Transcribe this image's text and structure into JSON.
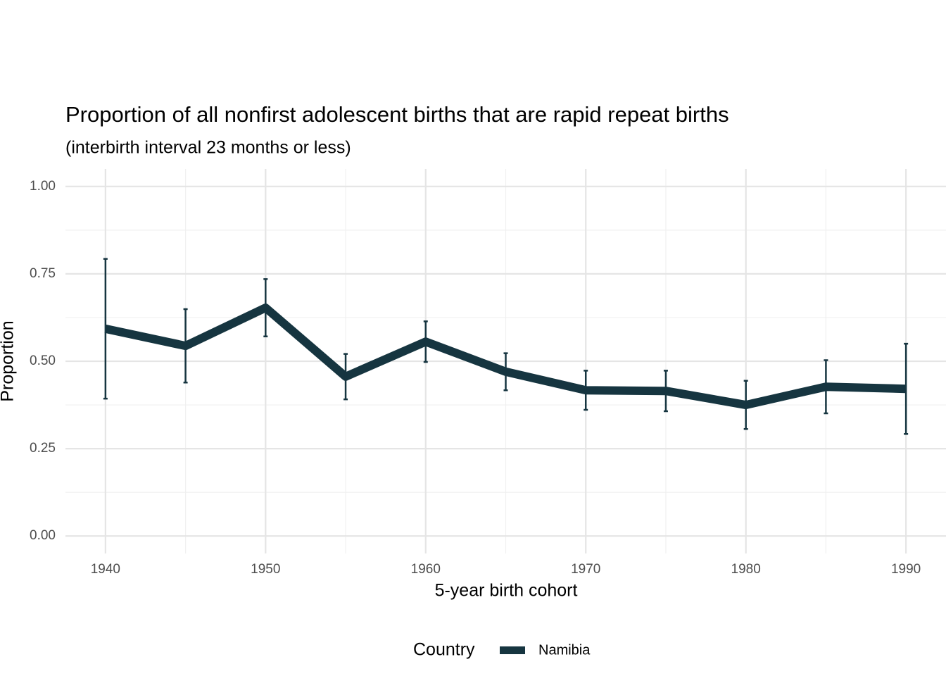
{
  "chart_data": {
    "type": "line",
    "title": "Proportion of all nonfirst adolescent births that are rapid repeat births",
    "subtitle": "(interbirth interval 23 months or less)",
    "x_label": "5-year birth cohort",
    "y_label": "Proportion",
    "x": [
      1940,
      1945,
      1950,
      1955,
      1960,
      1965,
      1970,
      1975,
      1980,
      1985,
      1990
    ],
    "series": [
      {
        "name": "Namibia",
        "color": "#163540",
        "values": [
          0.593,
          0.544,
          0.653,
          0.456,
          0.556,
          0.47,
          0.417,
          0.415,
          0.375,
          0.427,
          0.421
        ],
        "errors": [
          0.2,
          0.105,
          0.082,
          0.065,
          0.058,
          0.053,
          0.056,
          0.058,
          0.069,
          0.076,
          0.129
        ]
      }
    ],
    "xlim": [
      1937.5,
      1992.5
    ],
    "xticks": [
      1940,
      1950,
      1960,
      1970,
      1980,
      1990
    ],
    "x_minor_ticks": [
      1945,
      1955,
      1965,
      1975,
      1985
    ],
    "ylim": [
      -0.05,
      1.05
    ],
    "yticks": [
      {
        "value": 0,
        "label": "0.00"
      },
      {
        "value": 0.25,
        "label": "0.25"
      },
      {
        "value": 0.5,
        "label": "0.50"
      },
      {
        "value": 0.75,
        "label": "0.75"
      },
      {
        "value": 1,
        "label": "1.00"
      }
    ],
    "y_minor_ticks": [
      0.125,
      0.375,
      0.625,
      0.875
    ],
    "grid": true,
    "legend_title": "Country",
    "legend_position": "bottom"
  }
}
